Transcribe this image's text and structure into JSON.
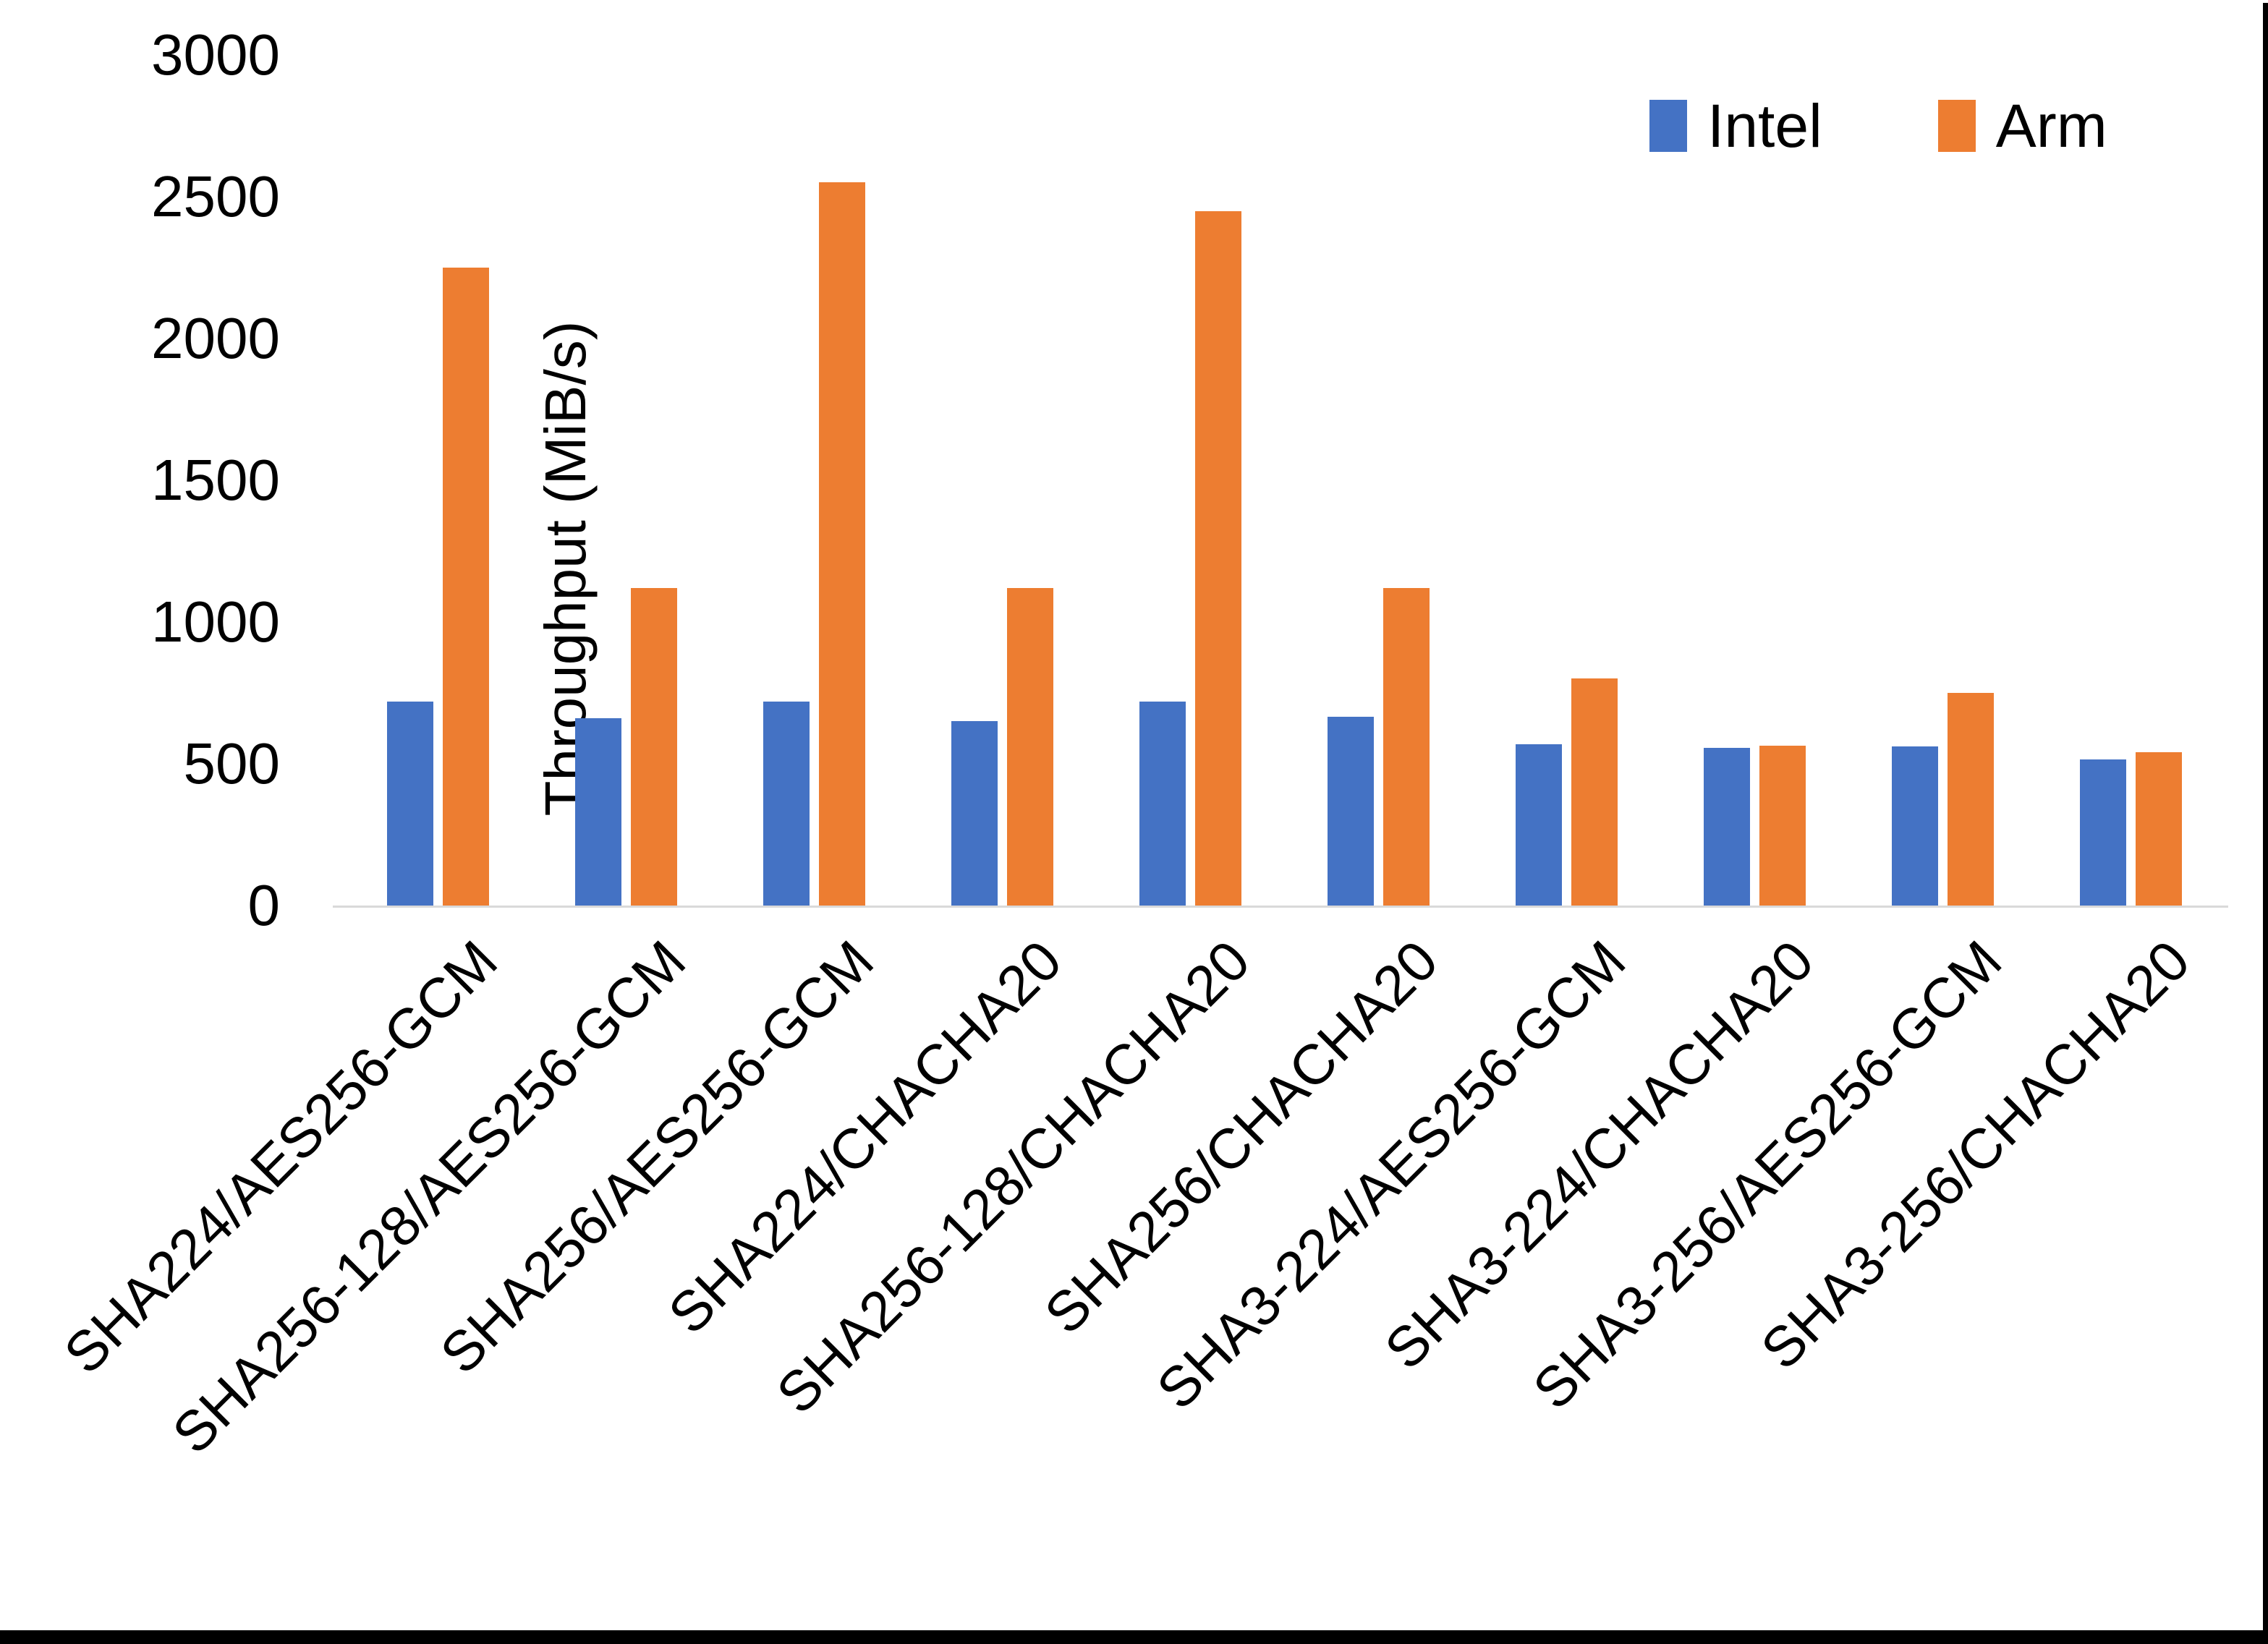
{
  "chart_data": {
    "type": "bar",
    "title": "",
    "ylabel": "Throughput (MiB/s)",
    "xlabel": "",
    "ylim": [
      0,
      3000
    ],
    "yticks": [
      0,
      500,
      1000,
      1500,
      2000,
      2500,
      3000
    ],
    "grid": false,
    "legend_position": "top-right",
    "categories": [
      "SHA224/AES256-GCM",
      "SHA256-128/AES256-GCM",
      "SHA256/AES256-GCM",
      "SHA224/CHACHA20",
      "SHA256-128/CHACHA20",
      "SHA256/CHACHA20",
      "SHA3-224/AES256-GCM",
      "SHA3-224/CHACHA20",
      "SHA3-256/AES256-GCM",
      "SHA3-256/CHACHA20"
    ],
    "series": [
      {
        "name": "Intel",
        "color": "#4472C4",
        "values": [
          720,
          660,
          720,
          650,
          720,
          665,
          570,
          555,
          560,
          515
        ]
      },
      {
        "name": "Arm",
        "color": "#ED7D31",
        "values": [
          2250,
          1120,
          2550,
          1120,
          2450,
          1120,
          800,
          565,
          750,
          540
        ]
      }
    ]
  },
  "colors": {
    "axis_line": "#D9D9D9",
    "text": "#000000",
    "page_frame": "#000000"
  }
}
